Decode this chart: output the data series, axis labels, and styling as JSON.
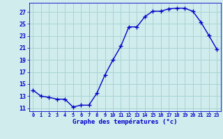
{
  "x": [
    0,
    1,
    2,
    3,
    4,
    5,
    6,
    7,
    8,
    9,
    10,
    11,
    12,
    13,
    14,
    15,
    16,
    17,
    18,
    19,
    20,
    21,
    22,
    23
  ],
  "y": [
    14,
    13,
    12.8,
    12.5,
    12.5,
    11.2,
    11.5,
    11.5,
    13.5,
    16.5,
    19,
    21.3,
    24.5,
    24.5,
    26.2,
    27.1,
    27.1,
    27.5,
    27.6,
    27.6,
    27.1,
    25.3,
    23.1,
    20.8
  ],
  "line_color": "#0000cc",
  "marker_color": "#0000cc",
  "bg_color": "#d0ecec",
  "grid_color": "#a8d4d4",
  "xlabel": "Graphe des températures (°c)",
  "xlabel_color": "#0000cc",
  "tick_color": "#0000cc",
  "xlim": [
    -0.5,
    23.5
  ],
  "ylim": [
    10.5,
    28.5
  ],
  "yticks": [
    11,
    13,
    15,
    17,
    19,
    21,
    23,
    25,
    27
  ],
  "xticks": [
    0,
    1,
    2,
    3,
    4,
    5,
    6,
    7,
    8,
    9,
    10,
    11,
    12,
    13,
    14,
    15,
    16,
    17,
    18,
    19,
    20,
    21,
    22,
    23
  ],
  "marker_size": 2.5,
  "line_width": 1.0
}
